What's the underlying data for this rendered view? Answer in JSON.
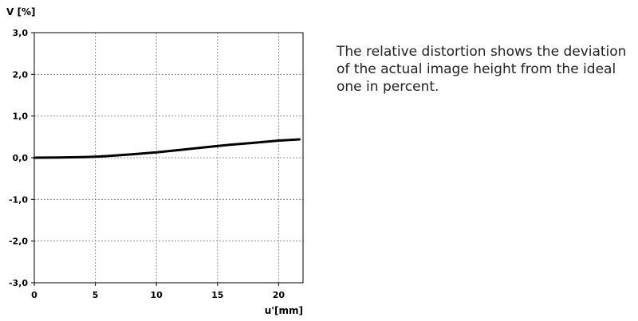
{
  "caption": "The relative distortion shows the deviation of the actual image height from the ideal one in percent.",
  "chart_data": {
    "type": "line",
    "xlabel": "u'[mm]",
    "ylabel": "V [%]",
    "xlim": [
      0,
      22
    ],
    "ylim": [
      -3.0,
      3.0
    ],
    "xticks": [
      0,
      5,
      10,
      15,
      20
    ],
    "xtick_labels": [
      "0",
      "5",
      "10",
      "15",
      "20"
    ],
    "yticks": [
      3.0,
      2.0,
      1.0,
      0.0,
      -1.0,
      -2.0,
      -3.0
    ],
    "ytick_labels": [
      "3,0",
      "2,0",
      "1,0",
      "0,0",
      "-1,0",
      "-2,0",
      "-3,0"
    ],
    "grid": true,
    "line_color": "#000000",
    "series": [
      {
        "x": [
          0,
          2,
          4,
          5,
          6,
          8,
          10,
          12,
          14,
          16,
          18,
          20,
          21.7
        ],
        "values": [
          0.0,
          0.005,
          0.015,
          0.025,
          0.04,
          0.08,
          0.13,
          0.19,
          0.25,
          0.31,
          0.36,
          0.41,
          0.44
        ]
      }
    ]
  }
}
